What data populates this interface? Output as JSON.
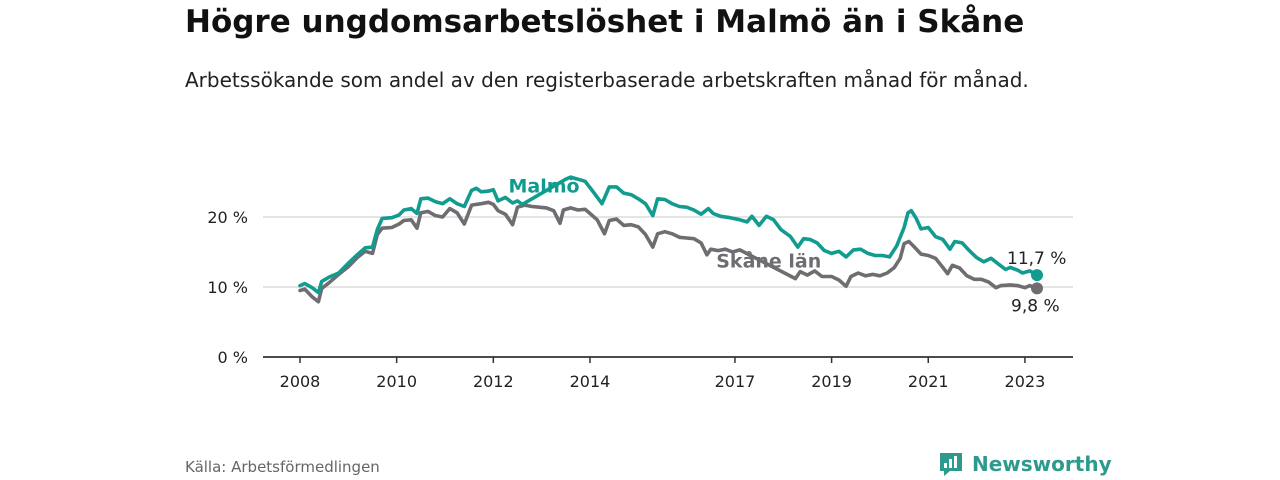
{
  "title": "Högre ungdomsarbetslöshet i Malmö än i Skåne",
  "subtitle": "Arbetssökande som andel av den registerbaserade arbetskraften månad för månad.",
  "source": "Källa: Arbetsförmedlingen",
  "brand": "Newsworthy",
  "colors": {
    "malmo": "#129b8f",
    "skane": "#6f6c72",
    "grid": "#d4d4d4",
    "axis": "#333333"
  },
  "chart_data": {
    "type": "line",
    "title": "Högre ungdomsarbetslöshet i Malmö än i Skåne",
    "xlabel": "",
    "ylabel": "",
    "xlim": [
      2008.0,
      2023.25
    ],
    "ylim": [
      0,
      25
    ],
    "yticks": [
      {
        "value": 0,
        "label": "0 %"
      },
      {
        "value": 10,
        "label": "10 %"
      },
      {
        "value": 20,
        "label": "20 %"
      }
    ],
    "xticks": [
      {
        "value": 2008,
        "label": "2008"
      },
      {
        "value": 2010,
        "label": "2010"
      },
      {
        "value": 2012,
        "label": "2012"
      },
      {
        "value": 2014,
        "label": "2014"
      },
      {
        "value": 2017,
        "label": "2017"
      },
      {
        "value": 2019,
        "label": "2019"
      },
      {
        "value": 2021,
        "label": "2021"
      },
      {
        "value": 2023,
        "label": "2023"
      }
    ],
    "series": [
      {
        "name": "Malmö",
        "label": "Malmö",
        "end_label": "11,7 %",
        "points": [
          [
            2008.0,
            10.2
          ],
          [
            2008.1,
            10.5
          ],
          [
            2008.25,
            9.9
          ],
          [
            2008.38,
            9.2
          ],
          [
            2008.45,
            10.8
          ],
          [
            2008.6,
            11.4
          ],
          [
            2008.8,
            12.0
          ],
          [
            2009.0,
            13.4
          ],
          [
            2009.2,
            14.7
          ],
          [
            2009.35,
            15.6
          ],
          [
            2009.5,
            15.7
          ],
          [
            2009.6,
            18.2
          ],
          [
            2009.7,
            19.8
          ],
          [
            2009.9,
            19.9
          ],
          [
            2010.05,
            20.3
          ],
          [
            2010.15,
            21.0
          ],
          [
            2010.3,
            21.2
          ],
          [
            2010.42,
            20.5
          ],
          [
            2010.5,
            22.6
          ],
          [
            2010.65,
            22.7
          ],
          [
            2010.8,
            22.2
          ],
          [
            2010.95,
            21.9
          ],
          [
            2011.1,
            22.6
          ],
          [
            2011.25,
            21.9
          ],
          [
            2011.4,
            21.5
          ],
          [
            2011.55,
            23.8
          ],
          [
            2011.65,
            24.1
          ],
          [
            2011.75,
            23.6
          ],
          [
            2011.9,
            23.7
          ],
          [
            2012.0,
            23.9
          ],
          [
            2012.1,
            22.3
          ],
          [
            2012.25,
            22.8
          ],
          [
            2012.4,
            22.0
          ],
          [
            2012.5,
            22.3
          ],
          [
            2012.6,
            21.8
          ],
          [
            2013.5,
            25.4
          ],
          [
            2013.6,
            25.7
          ],
          [
            2013.75,
            25.4
          ],
          [
            2013.9,
            25.1
          ],
          [
            2014.1,
            23.3
          ],
          [
            2014.25,
            21.9
          ],
          [
            2014.4,
            24.3
          ],
          [
            2014.55,
            24.3
          ],
          [
            2014.7,
            23.4
          ],
          [
            2014.85,
            23.2
          ],
          [
            2015.0,
            22.6
          ],
          [
            2015.15,
            21.9
          ],
          [
            2015.3,
            20.2
          ],
          [
            2015.4,
            22.6
          ],
          [
            2015.55,
            22.5
          ],
          [
            2015.7,
            21.9
          ],
          [
            2015.85,
            21.5
          ],
          [
            2016.0,
            21.4
          ],
          [
            2016.15,
            21.0
          ],
          [
            2016.3,
            20.4
          ],
          [
            2016.45,
            21.2
          ],
          [
            2016.55,
            20.5
          ],
          [
            2016.7,
            20.1
          ],
          [
            2016.9,
            19.9
          ],
          [
            2017.1,
            19.6
          ],
          [
            2017.25,
            19.3
          ],
          [
            2017.35,
            20.1
          ],
          [
            2017.5,
            18.8
          ],
          [
            2017.65,
            20.1
          ],
          [
            2017.8,
            19.6
          ],
          [
            2017.95,
            18.2
          ],
          [
            2018.15,
            17.2
          ],
          [
            2018.3,
            15.7
          ],
          [
            2018.42,
            16.9
          ],
          [
            2018.55,
            16.8
          ],
          [
            2018.7,
            16.3
          ],
          [
            2018.85,
            15.2
          ],
          [
            2019.0,
            14.8
          ],
          [
            2019.15,
            15.1
          ],
          [
            2019.3,
            14.3
          ],
          [
            2019.45,
            15.3
          ],
          [
            2019.6,
            15.4
          ],
          [
            2019.75,
            14.8
          ],
          [
            2019.9,
            14.5
          ],
          [
            2020.05,
            14.5
          ],
          [
            2020.2,
            14.3
          ],
          [
            2020.35,
            15.9
          ],
          [
            2020.5,
            18.5
          ],
          [
            2020.58,
            20.6
          ],
          [
            2020.65,
            20.9
          ],
          [
            2020.75,
            19.8
          ],
          [
            2020.85,
            18.3
          ],
          [
            2021.0,
            18.5
          ],
          [
            2021.15,
            17.2
          ],
          [
            2021.3,
            16.8
          ],
          [
            2021.45,
            15.4
          ],
          [
            2021.55,
            16.5
          ],
          [
            2021.7,
            16.3
          ],
          [
            2021.85,
            15.2
          ],
          [
            2022.0,
            14.2
          ],
          [
            2022.15,
            13.6
          ],
          [
            2022.3,
            14.1
          ],
          [
            2022.45,
            13.3
          ],
          [
            2022.6,
            12.5
          ],
          [
            2022.7,
            12.8
          ],
          [
            2022.85,
            12.4
          ],
          [
            2022.95,
            12.0
          ],
          [
            2023.1,
            12.3
          ],
          [
            2023.25,
            11.7
          ]
        ]
      },
      {
        "name": "Skåne län",
        "label": "Skåne län",
        "end_label": "9,8 %",
        "points": [
          [
            2008.0,
            9.5
          ],
          [
            2008.1,
            9.7
          ],
          [
            2008.25,
            8.6
          ],
          [
            2008.38,
            7.9
          ],
          [
            2008.45,
            9.8
          ],
          [
            2008.6,
            10.6
          ],
          [
            2008.8,
            11.8
          ],
          [
            2009.0,
            12.9
          ],
          [
            2009.2,
            14.3
          ],
          [
            2009.35,
            15.1
          ],
          [
            2009.5,
            14.8
          ],
          [
            2009.6,
            17.5
          ],
          [
            2009.7,
            18.4
          ],
          [
            2009.9,
            18.5
          ],
          [
            2010.05,
            19.0
          ],
          [
            2010.15,
            19.5
          ],
          [
            2010.3,
            19.6
          ],
          [
            2010.42,
            18.4
          ],
          [
            2010.5,
            20.6
          ],
          [
            2010.65,
            20.8
          ],
          [
            2010.8,
            20.2
          ],
          [
            2010.95,
            20.0
          ],
          [
            2011.1,
            21.2
          ],
          [
            2011.25,
            20.6
          ],
          [
            2011.4,
            19.0
          ],
          [
            2011.55,
            21.7
          ],
          [
            2011.65,
            21.8
          ],
          [
            2011.75,
            21.9
          ],
          [
            2011.9,
            22.1
          ],
          [
            2012.0,
            21.8
          ],
          [
            2012.1,
            20.9
          ],
          [
            2012.25,
            20.4
          ],
          [
            2012.4,
            18.9
          ],
          [
            2012.5,
            21.4
          ],
          [
            2012.65,
            21.7
          ],
          [
            2012.8,
            21.5
          ],
          [
            2012.95,
            21.4
          ],
          [
            2013.1,
            21.3
          ],
          [
            2013.25,
            20.9
          ],
          [
            2013.38,
            19.1
          ],
          [
            2013.45,
            21.0
          ],
          [
            2013.6,
            21.3
          ],
          [
            2013.75,
            21.0
          ],
          [
            2013.9,
            21.1
          ],
          [
            2014.0,
            20.5
          ],
          [
            2014.15,
            19.6
          ],
          [
            2014.3,
            17.6
          ],
          [
            2014.4,
            19.5
          ],
          [
            2014.55,
            19.7
          ],
          [
            2014.7,
            18.8
          ],
          [
            2014.85,
            18.9
          ],
          [
            2015.0,
            18.6
          ],
          [
            2015.15,
            17.5
          ],
          [
            2015.3,
            15.7
          ],
          [
            2015.4,
            17.6
          ],
          [
            2015.55,
            17.9
          ],
          [
            2015.7,
            17.6
          ],
          [
            2015.85,
            17.1
          ],
          [
            2016.0,
            17.0
          ],
          [
            2016.15,
            16.9
          ],
          [
            2016.3,
            16.3
          ],
          [
            2016.42,
            14.6
          ],
          [
            2016.5,
            15.4
          ],
          [
            2016.65,
            15.2
          ],
          [
            2016.8,
            15.4
          ],
          [
            2016.95,
            15.0
          ],
          [
            2017.1,
            15.3
          ],
          [
            2018.25,
            11.2
          ],
          [
            2018.35,
            12.2
          ],
          [
            2018.5,
            11.7
          ],
          [
            2018.65,
            12.3
          ],
          [
            2018.8,
            11.5
          ],
          [
            2019.0,
            11.5
          ],
          [
            2019.15,
            11.0
          ],
          [
            2019.3,
            10.1
          ],
          [
            2019.4,
            11.5
          ],
          [
            2019.55,
            12.0
          ],
          [
            2019.7,
            11.6
          ],
          [
            2019.85,
            11.8
          ],
          [
            2020.0,
            11.6
          ],
          [
            2020.15,
            12.0
          ],
          [
            2020.3,
            12.8
          ],
          [
            2020.42,
            14.1
          ],
          [
            2020.5,
            16.2
          ],
          [
            2020.6,
            16.5
          ],
          [
            2020.7,
            15.8
          ],
          [
            2020.85,
            14.7
          ],
          [
            2021.0,
            14.5
          ],
          [
            2021.15,
            14.1
          ],
          [
            2021.3,
            12.8
          ],
          [
            2021.4,
            11.9
          ],
          [
            2021.5,
            13.1
          ],
          [
            2021.65,
            12.7
          ],
          [
            2021.8,
            11.6
          ],
          [
            2021.95,
            11.1
          ],
          [
            2022.1,
            11.1
          ],
          [
            2022.25,
            10.7
          ],
          [
            2022.4,
            9.9
          ],
          [
            2022.5,
            10.2
          ],
          [
            2022.7,
            10.3
          ],
          [
            2022.85,
            10.2
          ],
          [
            2023.0,
            9.9
          ],
          [
            2023.1,
            10.2
          ],
          [
            2023.25,
            9.8
          ]
        ]
      }
    ]
  }
}
